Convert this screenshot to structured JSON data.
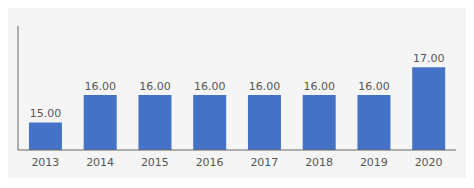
{
  "chart_data": {
    "type": "bar",
    "categories": [
      "2013",
      "2014",
      "2015",
      "2016",
      "2017",
      "2018",
      "2019",
      "2020"
    ],
    "values": [
      15.0,
      16.0,
      16.0,
      16.0,
      16.0,
      16.0,
      16.0,
      17.0
    ],
    "value_labels": [
      "15.00",
      "16.00",
      "16.00",
      "16.00",
      "16.00",
      "16.00",
      "16.00",
      "17.00"
    ],
    "data_labels": true,
    "color": "#4472c4",
    "ylim": [
      14.0,
      18.5
    ],
    "tick_labels": "x"
  }
}
